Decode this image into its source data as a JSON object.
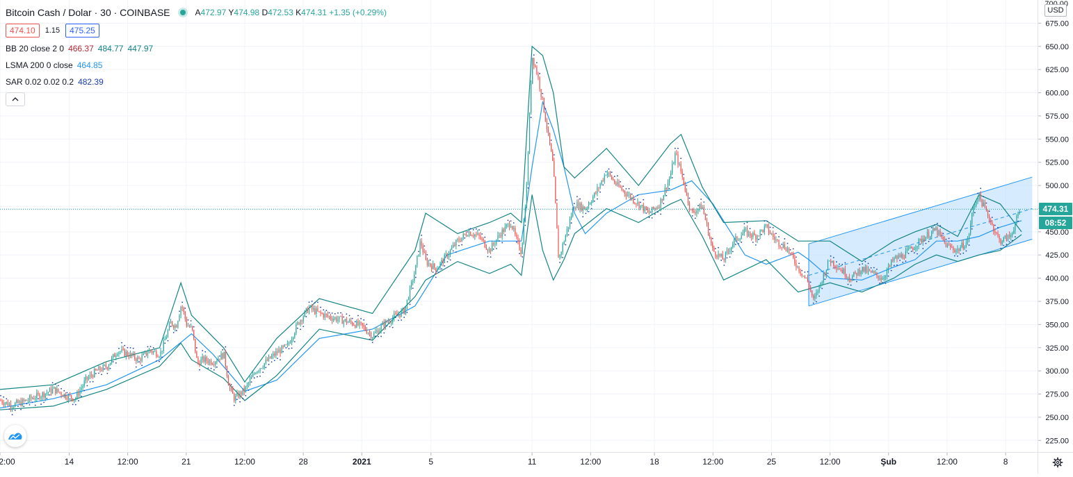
{
  "header": {
    "symbol": "Bitcoin Cash / Dolar · 30 · COINBASE",
    "ohlc": {
      "o_label": "A",
      "o": "472.97",
      "h_label": "Y",
      "h": "474.98",
      "l_label": "D",
      "l": "472.53",
      "c_label": "K",
      "c": "474.31",
      "change": "+1.35 (+0.29%)"
    },
    "bid": "474.10",
    "spread": "1.15",
    "ask": "475.25"
  },
  "indicators": [
    {
      "name": "BB 20 close 2 0",
      "values": [
        "466.37",
        "484.77",
        "447.97"
      ],
      "colors": [
        "#ef5350",
        "#26a69a",
        "#26a69a"
      ]
    },
    {
      "name": "LSMA 200 0 close",
      "values": [
        "464.85"
      ],
      "colors": [
        "#2196f3"
      ]
    },
    {
      "name": "SAR 0.02 0.02 0.2",
      "values": [
        "482.39"
      ],
      "colors": [
        "#2962ff"
      ]
    }
  ],
  "price_axis": {
    "currency": "USD",
    "top_label": "700.00",
    "last_price": "474.31",
    "countdown": "08:52",
    "last_price_color": "#26a69a"
  },
  "colors": {
    "up": "#26a69a",
    "down": "#ef5350",
    "lsma": "#2196f3",
    "sar": "#1c3fa8",
    "channel_fill": "#bbdefb",
    "channel_line": "#2196f3"
  },
  "icons": {
    "collapse": "chevron-up-icon",
    "logo": "tradingview-logo-icon",
    "settings": "gear-icon"
  },
  "chart_data": {
    "type": "line",
    "series_desc": "candlestick with Bollinger Bands, LSMA and Parabolic SAR",
    "ylim": [
      212.5,
      700
    ],
    "y_ticks": [
      225,
      250,
      275,
      300,
      325,
      350,
      375,
      400,
      425,
      450,
      475,
      500,
      525,
      550,
      575,
      600,
      625,
      650,
      675
    ],
    "y_tick_labels": [
      "225.00",
      "250.00",
      "275.00",
      "300.00",
      "325.00",
      "350.00",
      "375.00",
      "400.00",
      "425.00",
      "450.00",
      "475.00",
      "500.00",
      "525.00",
      "550.00",
      "575.00",
      "600.00",
      "625.00",
      "650.00",
      "675.00"
    ],
    "x_ticks": [
      "2:00",
      "14",
      "12:00",
      "21",
      "12:00",
      "28",
      "2021",
      "5",
      "11",
      "12:00",
      "18",
      "12:00",
      "25",
      "12:00",
      "Şub",
      "12:00",
      "8"
    ],
    "x_tick_values": [
      0,
      13,
      24,
      35,
      46,
      57,
      68,
      81,
      100,
      111,
      123,
      134,
      145,
      156,
      167,
      178,
      189
    ],
    "x_range": [
      0,
      195
    ],
    "close_path": [
      [
        0,
        268
      ],
      [
        2,
        263
      ],
      [
        4,
        266
      ],
      [
        6,
        271
      ],
      [
        8,
        275
      ],
      [
        10,
        280
      ],
      [
        12,
        274
      ],
      [
        14,
        270
      ],
      [
        16,
        290
      ],
      [
        18,
        300
      ],
      [
        20,
        305
      ],
      [
        22,
        322
      ],
      [
        24,
        318
      ],
      [
        26,
        312
      ],
      [
        28,
        322
      ],
      [
        30,
        318
      ],
      [
        32,
        352
      ],
      [
        33,
        348
      ],
      [
        34,
        372
      ],
      [
        35,
        350
      ],
      [
        36,
        345
      ],
      [
        37,
        308
      ],
      [
        38,
        312
      ],
      [
        40,
        310
      ],
      [
        42,
        318
      ],
      [
        43,
        282
      ],
      [
        44,
        270
      ],
      [
        46,
        280
      ],
      [
        48,
        300
      ],
      [
        50,
        310
      ],
      [
        52,
        320
      ],
      [
        54,
        327
      ],
      [
        56,
        352
      ],
      [
        58,
        368
      ],
      [
        60,
        362
      ],
      [
        62,
        358
      ],
      [
        64,
        355
      ],
      [
        66,
        352
      ],
      [
        68,
        348
      ],
      [
        70,
        338
      ],
      [
        72,
        350
      ],
      [
        74,
        358
      ],
      [
        76,
        365
      ],
      [
        78,
        408
      ],
      [
        79,
        440
      ],
      [
        80,
        418
      ],
      [
        82,
        410
      ],
      [
        84,
        425
      ],
      [
        86,
        440
      ],
      [
        88,
        450
      ],
      [
        90,
        445
      ],
      [
        92,
        430
      ],
      [
        94,
        448
      ],
      [
        96,
        460
      ],
      [
        97,
        442
      ],
      [
        98,
        428
      ],
      [
        99,
        500
      ],
      [
        100,
        640
      ],
      [
        101,
        620
      ],
      [
        102,
        590
      ],
      [
        103,
        555
      ],
      [
        104,
        520
      ],
      [
        105,
        420
      ],
      [
        106,
        440
      ],
      [
        108,
        480
      ],
      [
        110,
        475
      ],
      [
        112,
        492
      ],
      [
        114,
        515
      ],
      [
        116,
        500
      ],
      [
        118,
        490
      ],
      [
        120,
        480
      ],
      [
        122,
        470
      ],
      [
        124,
        480
      ],
      [
        126,
        510
      ],
      [
        127,
        535
      ],
      [
        128,
        515
      ],
      [
        130,
        470
      ],
      [
        132,
        478
      ],
      [
        134,
        430
      ],
      [
        136,
        420
      ],
      [
        138,
        440
      ],
      [
        140,
        450
      ],
      [
        142,
        445
      ],
      [
        144,
        455
      ],
      [
        146,
        440
      ],
      [
        148,
        432
      ],
      [
        150,
        412
      ],
      [
        152,
        395
      ],
      [
        153,
        375
      ],
      [
        154,
        390
      ],
      [
        156,
        420
      ],
      [
        158,
        410
      ],
      [
        160,
        400
      ],
      [
        162,
        410
      ],
      [
        164,
        405
      ],
      [
        166,
        400
      ],
      [
        168,
        420
      ],
      [
        170,
        425
      ],
      [
        172,
        435
      ],
      [
        174,
        445
      ],
      [
        176,
        452
      ],
      [
        178,
        435
      ],
      [
        180,
        430
      ],
      [
        182,
        440
      ],
      [
        183,
        475
      ],
      [
        184,
        490
      ],
      [
        186,
        465
      ],
      [
        188,
        440
      ],
      [
        190,
        445
      ],
      [
        192,
        475
      ]
    ],
    "bb_upper_path": [
      [
        0,
        280
      ],
      [
        10,
        285
      ],
      [
        20,
        310
      ],
      [
        30,
        325
      ],
      [
        34,
        395
      ],
      [
        36,
        360
      ],
      [
        42,
        325
      ],
      [
        46,
        288
      ],
      [
        52,
        335
      ],
      [
        60,
        378
      ],
      [
        70,
        362
      ],
      [
        78,
        430
      ],
      [
        80,
        470
      ],
      [
        86,
        448
      ],
      [
        92,
        460
      ],
      [
        96,
        470
      ],
      [
        98,
        460
      ],
      [
        100,
        650
      ],
      [
        102,
        640
      ],
      [
        104,
        600
      ],
      [
        106,
        520
      ],
      [
        108,
        508
      ],
      [
        114,
        540
      ],
      [
        120,
        500
      ],
      [
        126,
        545
      ],
      [
        128,
        555
      ],
      [
        132,
        498
      ],
      [
        136,
        460
      ],
      [
        144,
        462
      ],
      [
        150,
        440
      ],
      [
        156,
        440
      ],
      [
        162,
        418
      ],
      [
        168,
        440
      ],
      [
        172,
        450
      ],
      [
        176,
        458
      ],
      [
        180,
        445
      ],
      [
        184,
        490
      ],
      [
        188,
        480
      ],
      [
        192,
        450
      ]
    ],
    "bb_lower_path": [
      [
        0,
        258
      ],
      [
        10,
        262
      ],
      [
        20,
        280
      ],
      [
        30,
        305
      ],
      [
        34,
        330
      ],
      [
        36,
        312
      ],
      [
        42,
        292
      ],
      [
        46,
        268
      ],
      [
        52,
        295
      ],
      [
        60,
        345
      ],
      [
        70,
        333
      ],
      [
        78,
        380
      ],
      [
        80,
        398
      ],
      [
        86,
        418
      ],
      [
        92,
        405
      ],
      [
        96,
        415
      ],
      [
        98,
        403
      ],
      [
        100,
        490
      ],
      [
        102,
        430
      ],
      [
        104,
        398
      ],
      [
        106,
        420
      ],
      [
        108,
        448
      ],
      [
        114,
        475
      ],
      [
        120,
        460
      ],
      [
        126,
        480
      ],
      [
        128,
        485
      ],
      [
        132,
        445
      ],
      [
        136,
        398
      ],
      [
        144,
        420
      ],
      [
        150,
        385
      ],
      [
        156,
        395
      ],
      [
        162,
        385
      ],
      [
        168,
        400
      ],
      [
        172,
        415
      ],
      [
        176,
        425
      ],
      [
        180,
        418
      ],
      [
        184,
        425
      ],
      [
        188,
        430
      ],
      [
        192,
        447
      ]
    ],
    "lsma_path": [
      [
        0,
        260
      ],
      [
        10,
        270
      ],
      [
        20,
        285
      ],
      [
        30,
        312
      ],
      [
        36,
        340
      ],
      [
        40,
        318
      ],
      [
        46,
        278
      ],
      [
        52,
        290
      ],
      [
        60,
        335
      ],
      [
        70,
        345
      ],
      [
        78,
        370
      ],
      [
        84,
        425
      ],
      [
        92,
        440
      ],
      [
        98,
        440
      ],
      [
        100,
        520
      ],
      [
        102,
        590
      ],
      [
        104,
        560
      ],
      [
        106,
        520
      ],
      [
        108,
        470
      ],
      [
        110,
        448
      ],
      [
        114,
        470
      ],
      [
        120,
        490
      ],
      [
        126,
        495
      ],
      [
        130,
        505
      ],
      [
        134,
        480
      ],
      [
        140,
        425
      ],
      [
        144,
        415
      ],
      [
        150,
        428
      ],
      [
        152,
        420
      ],
      [
        156,
        400
      ],
      [
        162,
        398
      ],
      [
        168,
        412
      ],
      [
        172,
        420
      ],
      [
        176,
        440
      ],
      [
        180,
        440
      ],
      [
        184,
        445
      ],
      [
        188,
        455
      ],
      [
        192,
        462
      ]
    ],
    "channel": {
      "upper": [
        [
          152,
          437
        ],
        [
          194,
          509
        ]
      ],
      "lower": [
        [
          152,
          370
        ],
        [
          194,
          442
        ]
      ],
      "mid": [
        [
          152,
          403
        ],
        [
          194,
          475
        ]
      ]
    },
    "last_price": 474.31
  }
}
